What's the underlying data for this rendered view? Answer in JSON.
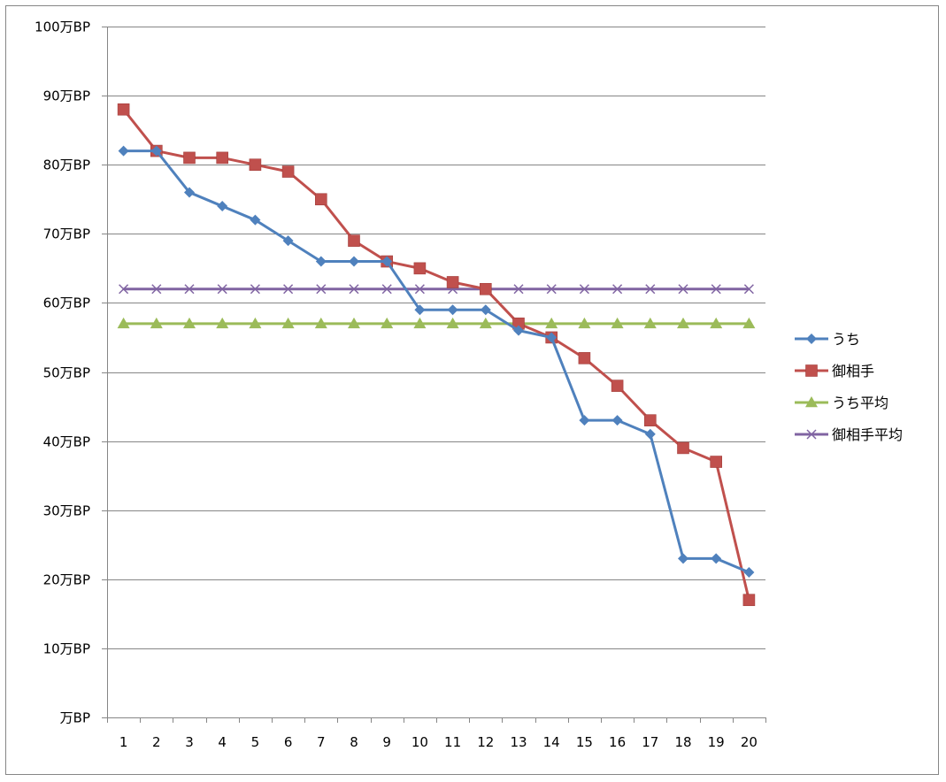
{
  "chart_data": {
    "type": "line",
    "title": "",
    "xlabel": "",
    "ylabel": "",
    "categories": [
      "1",
      "2",
      "3",
      "4",
      "5",
      "6",
      "7",
      "8",
      "9",
      "10",
      "11",
      "12",
      "13",
      "14",
      "15",
      "16",
      "17",
      "18",
      "19",
      "20"
    ],
    "y_tick_labels": [
      "万BP",
      "10万BP",
      "20万BP",
      "30万BP",
      "40万BP",
      "50万BP",
      "60万BP",
      "70万BP",
      "80万BP",
      "90万BP",
      "100万BP"
    ],
    "ylim": [
      0,
      100
    ],
    "y_step": 10,
    "grid": true,
    "legend_position": "right",
    "series": [
      {
        "name": "うち",
        "color": "#4f81bd",
        "marker": "diamond",
        "values": [
          82,
          82,
          76,
          74,
          72,
          69,
          66,
          66,
          66,
          59,
          59,
          59,
          56,
          55,
          43,
          43,
          41,
          23,
          23,
          21
        ]
      },
      {
        "name": "御相手",
        "color": "#c0504d",
        "marker": "square",
        "values": [
          88,
          82,
          81,
          81,
          80,
          79,
          75,
          69,
          66,
          65,
          63,
          62,
          57,
          55,
          52,
          48,
          43,
          39,
          37,
          17
        ]
      },
      {
        "name": "うち平均",
        "color": "#9bbb59",
        "marker": "triangle",
        "values": [
          57,
          57,
          57,
          57,
          57,
          57,
          57,
          57,
          57,
          57,
          57,
          57,
          57,
          57,
          57,
          57,
          57,
          57,
          57,
          57
        ]
      },
      {
        "name": "御相手平均",
        "color": "#8064a2",
        "marker": "x",
        "values": [
          62,
          62,
          62,
          62,
          62,
          62,
          62,
          62,
          62,
          62,
          62,
          62,
          62,
          62,
          62,
          62,
          62,
          62,
          62,
          62
        ]
      }
    ]
  }
}
